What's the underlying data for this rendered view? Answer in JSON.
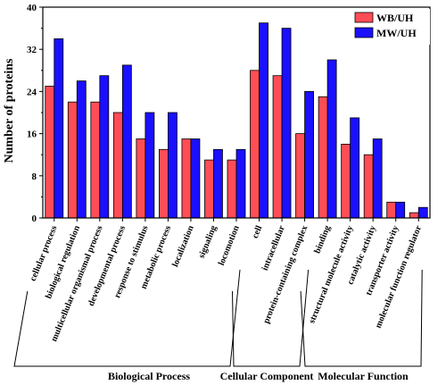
{
  "chart_data": {
    "type": "bar",
    "ylabel": "Number of proteins",
    "ylim": [
      0,
      40
    ],
    "yticks": [
      0,
      8,
      16,
      24,
      32,
      40
    ],
    "categories": [
      "cellular process",
      "biological regulation",
      "multicellular organismal process",
      "developmental process",
      "response to stimulus",
      "metabolic process",
      "localization",
      "signaling",
      "locomotion",
      "cell",
      "intracellular",
      "protein-containing complex",
      "binding",
      "structural molecule activity",
      "catalytic activity",
      "transporter activity",
      "molecular function regulator"
    ],
    "series": [
      {
        "name": "WB/UH",
        "color": "#ff4d55",
        "values": [
          25,
          22,
          22,
          20,
          15,
          13,
          15,
          11,
          11,
          28,
          27,
          16,
          23,
          14,
          12,
          3,
          1
        ]
      },
      {
        "name": "MW/UH",
        "color": "#1a10ff",
        "values": [
          34,
          26,
          27,
          29,
          20,
          20,
          15,
          13,
          13,
          37,
          36,
          24,
          30,
          19,
          15,
          3,
          2
        ]
      }
    ],
    "groups": [
      {
        "label": "Biological Process",
        "start": 0,
        "end": 8
      },
      {
        "label": "Cellular Component",
        "start": 9,
        "end": 11
      },
      {
        "label": "Molecular Function",
        "start": 12,
        "end": 16
      }
    ],
    "legend_position": "top-right",
    "grid": false
  }
}
